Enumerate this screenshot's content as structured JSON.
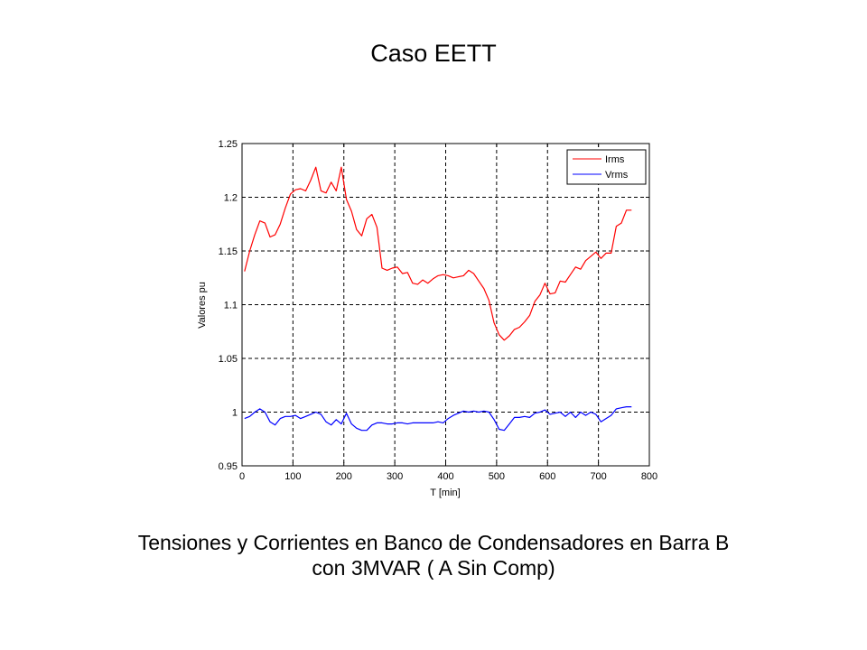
{
  "page": {
    "title": "Caso EETT",
    "caption_line1": "Tensiones y Corrientes en Banco de Condensadores en Barra B",
    "caption_line2": "con 3MVAR ( A Sin Comp)"
  },
  "chart_data": {
    "type": "line",
    "title": "",
    "xlabel": "T [min]",
    "ylabel": "Valores pu",
    "xlim": [
      0,
      800
    ],
    "ylim": [
      0.95,
      1.25
    ],
    "xticks": [
      0,
      100,
      200,
      300,
      400,
      500,
      600,
      700,
      800
    ],
    "yticks": [
      0.95,
      1,
      1.05,
      1.1,
      1.15,
      1.2,
      1.25
    ],
    "xtick_labels": [
      "0",
      "100",
      "200",
      "300",
      "400",
      "500",
      "600",
      "700",
      "800"
    ],
    "ytick_labels": [
      "0.95",
      "1",
      "1.05",
      "1.1",
      "1.15",
      "1.2",
      "1.25"
    ],
    "grid": true,
    "legend_position": "top-right",
    "series": [
      {
        "name": "Irms",
        "color": "#ff0000",
        "x": [
          5,
          15,
          25,
          35,
          45,
          55,
          65,
          75,
          85,
          95,
          105,
          115,
          125,
          135,
          145,
          155,
          165,
          175,
          185,
          195,
          205,
          215,
          225,
          235,
          245,
          255,
          265,
          275,
          285,
          295,
          305,
          315,
          325,
          335,
          345,
          355,
          365,
          375,
          385,
          395,
          405,
          415,
          425,
          435,
          445,
          455,
          465,
          475,
          485,
          495,
          505,
          515,
          525,
          535,
          545,
          555,
          565,
          575,
          585,
          595,
          605,
          615,
          625,
          635,
          645,
          655,
          665,
          675,
          685,
          695,
          705,
          715,
          725,
          735,
          745,
          755,
          765
        ],
        "values": [
          1.131,
          1.15,
          1.165,
          1.178,
          1.176,
          1.163,
          1.165,
          1.175,
          1.19,
          1.203,
          1.207,
          1.208,
          1.206,
          1.216,
          1.228,
          1.206,
          1.204,
          1.214,
          1.206,
          1.228,
          1.198,
          1.187,
          1.17,
          1.164,
          1.18,
          1.184,
          1.172,
          1.134,
          1.132,
          1.134,
          1.135,
          1.129,
          1.13,
          1.12,
          1.119,
          1.123,
          1.12,
          1.124,
          1.127,
          1.128,
          1.127,
          1.125,
          1.126,
          1.127,
          1.132,
          1.129,
          1.122,
          1.115,
          1.104,
          1.083,
          1.072,
          1.067,
          1.071,
          1.077,
          1.079,
          1.084,
          1.09,
          1.103,
          1.109,
          1.12,
          1.11,
          1.111,
          1.122,
          1.121,
          1.128,
          1.135,
          1.133,
          1.141,
          1.145,
          1.149,
          1.143,
          1.148,
          1.148,
          1.173,
          1.176,
          1.188,
          1.188
        ]
      },
      {
        "name": "Vrms",
        "color": "#0000ff",
        "x": [
          5,
          15,
          25,
          35,
          45,
          55,
          65,
          75,
          85,
          95,
          105,
          115,
          125,
          135,
          145,
          155,
          165,
          175,
          185,
          195,
          205,
          215,
          225,
          235,
          245,
          255,
          265,
          275,
          285,
          295,
          305,
          315,
          325,
          335,
          345,
          355,
          365,
          375,
          385,
          395,
          405,
          415,
          425,
          435,
          445,
          455,
          465,
          475,
          485,
          495,
          505,
          515,
          525,
          535,
          545,
          555,
          565,
          575,
          585,
          595,
          605,
          615,
          625,
          635,
          645,
          655,
          665,
          675,
          685,
          695,
          705,
          715,
          725,
          735,
          745,
          755,
          765
        ],
        "values": [
          0.994,
          0.996,
          1.0,
          1.003,
          1.0,
          0.991,
          0.988,
          0.994,
          0.996,
          0.996,
          0.997,
          0.994,
          0.996,
          0.998,
          1.0,
          0.998,
          0.991,
          0.988,
          0.993,
          0.989,
          0.999,
          0.989,
          0.985,
          0.983,
          0.983,
          0.988,
          0.99,
          0.99,
          0.989,
          0.989,
          0.99,
          0.99,
          0.989,
          0.99,
          0.99,
          0.99,
          0.99,
          0.99,
          0.991,
          0.99,
          0.994,
          0.997,
          0.999,
          1.001,
          1.0,
          1.001,
          1.0,
          1.001,
          1.0,
          0.993,
          0.984,
          0.983,
          0.989,
          0.995,
          0.995,
          0.996,
          0.995,
          0.999,
          1.0,
          1.002,
          0.998,
          0.999,
          1.0,
          0.996,
          1.0,
          0.995,
          1.0,
          0.997,
          1.0,
          0.998,
          0.991,
          0.994,
          0.997,
          1.003,
          1.004,
          1.005,
          1.005
        ]
      }
    ]
  }
}
